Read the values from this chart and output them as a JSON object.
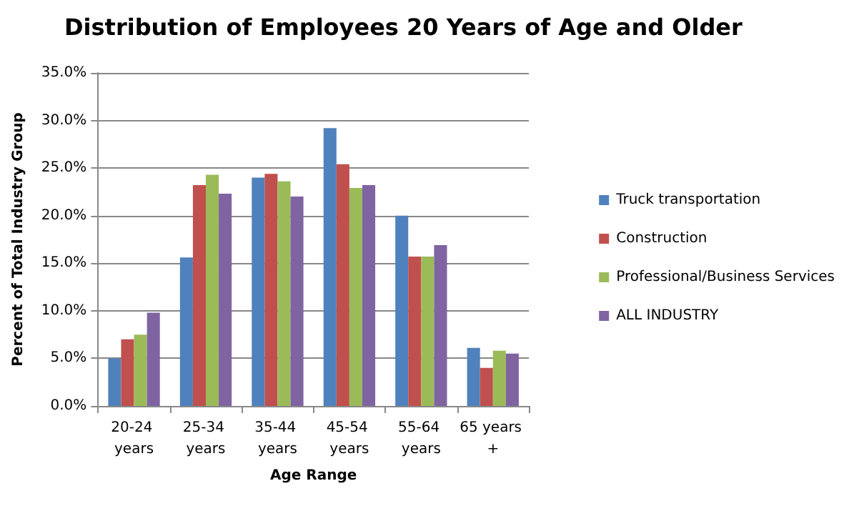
{
  "chart_data": {
    "type": "bar",
    "title": "Distribution of Employees 20 Years of Age and Older",
    "xlabel": "Age Range",
    "ylabel": "Percent of Total Industry Group",
    "categories": [
      "20-24 years",
      "25-34 years",
      "35-44 years",
      "45-54 years",
      "55-64 years",
      "65 years +"
    ],
    "series": [
      {
        "name": "Truck transportation",
        "color": "#4f81bd",
        "values": [
          5.0,
          15.6,
          24.0,
          29.2,
          20.0,
          6.1
        ]
      },
      {
        "name": "Construction",
        "color": "#c0504d",
        "values": [
          7.0,
          23.2,
          24.4,
          25.4,
          15.7,
          4.0
        ]
      },
      {
        "name": "Professional/Business Services",
        "color": "#9bbb59",
        "values": [
          7.5,
          24.3,
          23.6,
          22.9,
          15.7,
          5.8
        ]
      },
      {
        "name": "ALL INDUSTRY",
        "color": "#8064a2",
        "values": [
          9.8,
          22.3,
          22.0,
          23.2,
          16.9,
          5.5
        ]
      }
    ],
    "ylim": [
      0,
      35
    ],
    "yticks": [
      {
        "value": 0,
        "label": "0.0%"
      },
      {
        "value": 5,
        "label": "5.0%"
      },
      {
        "value": 10,
        "label": "10.0%"
      },
      {
        "value": 15,
        "label": "15.0%"
      },
      {
        "value": 20,
        "label": "20.0%"
      },
      {
        "value": 25,
        "label": "25.0%"
      },
      {
        "value": 30,
        "label": "30.0%"
      },
      {
        "value": 35,
        "label": "35.0%"
      }
    ],
    "grid": "y",
    "legend": "right"
  }
}
